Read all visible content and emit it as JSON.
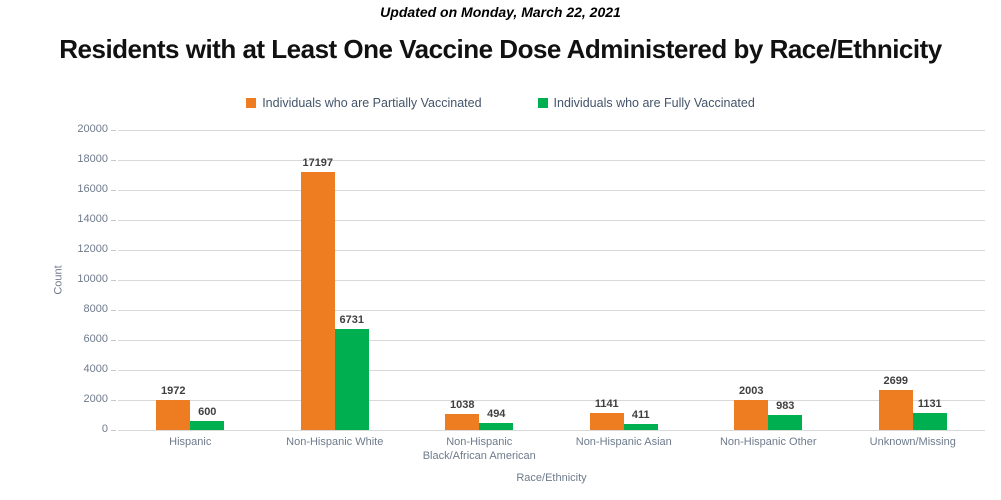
{
  "page": {
    "updated_line": "Updated on Monday, March 22, 2021",
    "title": "Residents with at Least One Vaccine Dose Administered by Race/Ethnicity"
  },
  "colors": {
    "partially_vaccinated": "#EE7D22",
    "fully_vaccinated": "#00B050",
    "gridline": "#D9D9D9",
    "axis_text": "#6F7B8C",
    "legend_text": "#44546A",
    "data_label": "#404040"
  },
  "chart_data": {
    "type": "bar",
    "title": "Residents with at Least One Vaccine Dose Administered by Race/Ethnicity",
    "subtitle": "Updated on Monday, March 22, 2021",
    "categories": [
      "Hispanic",
      "Non-Hispanic White",
      "Non-Hispanic Black/African American",
      "Non-Hispanic Asian",
      "Non-Hispanic Other",
      "Unknown/Missing"
    ],
    "series": [
      {
        "name": "Individuals who are Partially Vaccinated",
        "color": "#EE7D22",
        "values": [
          1972,
          17197,
          1038,
          1141,
          2003,
          2699
        ]
      },
      {
        "name": "Individuals who are Fully Vaccinated",
        "color": "#00B050",
        "values": [
          600,
          6731,
          494,
          411,
          983,
          1131
        ]
      }
    ],
    "xlabel": "Race/Ethnicity",
    "ylabel": "Count",
    "ylim": [
      0,
      20000
    ],
    "ytick_step": 2000,
    "yticks": [
      0,
      2000,
      4000,
      6000,
      8000,
      10000,
      12000,
      14000,
      16000,
      18000,
      20000
    ],
    "grid": true,
    "legend_position": "top",
    "data_labels": true
  }
}
